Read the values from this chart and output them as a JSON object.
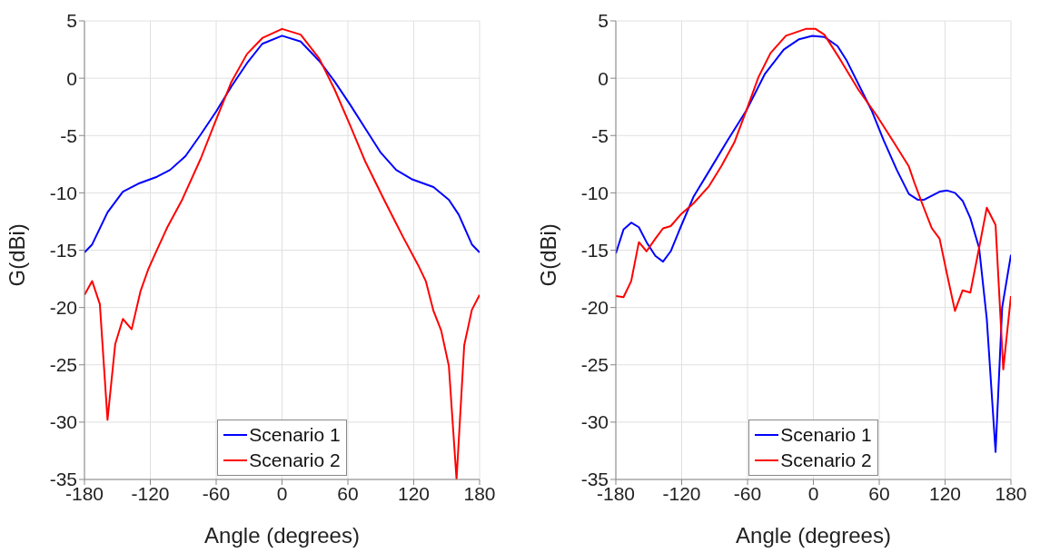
{
  "chart_data": [
    {
      "type": "line",
      "xlabel": "Angle (degrees)",
      "ylabel": "G(dBi)",
      "xlim": [
        -180,
        180
      ],
      "xticks": [
        -180,
        -120,
        -60,
        0,
        60,
        120,
        180
      ],
      "ylim": [
        -35,
        5
      ],
      "yticks": [
        -35,
        -30,
        -25,
        -20,
        -15,
        -10,
        -5,
        0,
        5
      ],
      "grid": true,
      "legend": "bottom",
      "marker": "none",
      "line_style": "solid",
      "series": [
        {
          "name": "Scenario 1",
          "color": "#0000ff",
          "x": [
            -180,
            -173,
            -159,
            -145,
            -131,
            -114,
            -102,
            -88,
            -74,
            -60,
            -46,
            -32,
            -18,
            0,
            17,
            34,
            48,
            62,
            76,
            90,
            104,
            118,
            138,
            152,
            161,
            173,
            180
          ],
          "values": [
            -15.2,
            -14.5,
            -11.7,
            -9.9,
            -9.2,
            -8.6,
            -8.0,
            -6.8,
            -4.9,
            -2.9,
            -0.7,
            1.3,
            3.0,
            3.7,
            3.2,
            1.5,
            -0.3,
            -2.3,
            -4.4,
            -6.5,
            -8.0,
            -8.8,
            -9.5,
            -10.6,
            -11.9,
            -14.5,
            -15.2
          ]
        },
        {
          "name": "Scenario 2",
          "color": "#ff0000",
          "x": [
            -180,
            -173,
            -166,
            -159,
            -152,
            -145,
            -137,
            -129,
            -122,
            -116,
            -104.5,
            -91,
            -74,
            -60,
            -46,
            -32,
            -18,
            0,
            17,
            34,
            48,
            62,
            76,
            93,
            110,
            124,
            131,
            138,
            145,
            152,
            159,
            166,
            173,
            180
          ],
          "values": [
            -18.9,
            -17.7,
            -19.7,
            -29.8,
            -23.2,
            -21.0,
            -21.9,
            -18.6,
            -16.7,
            -15.4,
            -13.0,
            -10.6,
            -7.0,
            -3.6,
            -0.3,
            2.1,
            3.5,
            4.3,
            3.8,
            1.7,
            -1.0,
            -4.1,
            -7.3,
            -10.6,
            -13.8,
            -16.3,
            -17.7,
            -20.3,
            -22.0,
            -25.1,
            -35,
            -23.3,
            -20.2,
            -18.9
          ]
        }
      ]
    },
    {
      "type": "line",
      "xlabel": "Angle (degrees)",
      "ylabel": "G(dBi)",
      "xlim": [
        -180,
        180
      ],
      "xticks": [
        -180,
        -120,
        -60,
        0,
        60,
        120,
        180
      ],
      "ylim": [
        -35,
        5
      ],
      "yticks": [
        -35,
        -30,
        -25,
        -20,
        -15,
        -10,
        -5,
        0,
        5
      ],
      "grid": true,
      "legend": "bottom",
      "marker": "none",
      "line_style": "solid",
      "series": [
        {
          "name": "Scenario 1",
          "color": "#0000ff",
          "x": [
            -180,
            -173,
            -166,
            -159,
            -152,
            -144,
            -137,
            -130,
            -121,
            -109,
            -95,
            -78,
            -61,
            -44,
            -27,
            -13,
            -1,
            10,
            22,
            30,
            41,
            53,
            64,
            76,
            87,
            95,
            101,
            115,
            122,
            129,
            136,
            143,
            151,
            158,
            166,
            172,
            180
          ],
          "values": [
            -15.3,
            -13.2,
            -12.6,
            -13.0,
            -14.3,
            -15.5,
            -16.0,
            -15.1,
            -13.0,
            -10.3,
            -8.1,
            -5.4,
            -2.8,
            0.4,
            2.5,
            3.4,
            3.7,
            3.6,
            2.8,
            1.6,
            -0.5,
            -2.8,
            -5.4,
            -8.0,
            -10.1,
            -10.6,
            -10.6,
            -9.9,
            -9.8,
            -10.0,
            -10.7,
            -12.2,
            -14.8,
            -21.0,
            -32.6,
            -20.0,
            -15.4
          ]
        },
        {
          "name": "Scenario 2",
          "color": "#ff0000",
          "x": [
            -180,
            -173,
            -166,
            -159,
            -152,
            -144,
            -137,
            -130,
            -121,
            -109,
            -95,
            -84,
            -72,
            -61,
            -50,
            -39,
            -25,
            -7,
            2,
            10,
            24,
            41,
            58,
            72,
            87,
            92,
            99,
            108,
            115,
            122,
            129,
            136,
            143,
            151,
            158,
            166,
            173,
            180
          ],
          "values": [
            -19.0,
            -19.1,
            -17.7,
            -14.3,
            -15.1,
            -14.0,
            -13.1,
            -12.9,
            -11.9,
            -10.9,
            -9.4,
            -7.7,
            -5.6,
            -2.8,
            0.1,
            2.2,
            3.7,
            4.3,
            4.3,
            3.8,
            1.7,
            -1.0,
            -3.3,
            -5.4,
            -7.7,
            -9.1,
            -10.9,
            -13.1,
            -14.0,
            -17.2,
            -20.3,
            -18.5,
            -18.7,
            -14.8,
            -11.3,
            -12.8,
            -25.4,
            -19.0
          ]
        }
      ]
    }
  ]
}
